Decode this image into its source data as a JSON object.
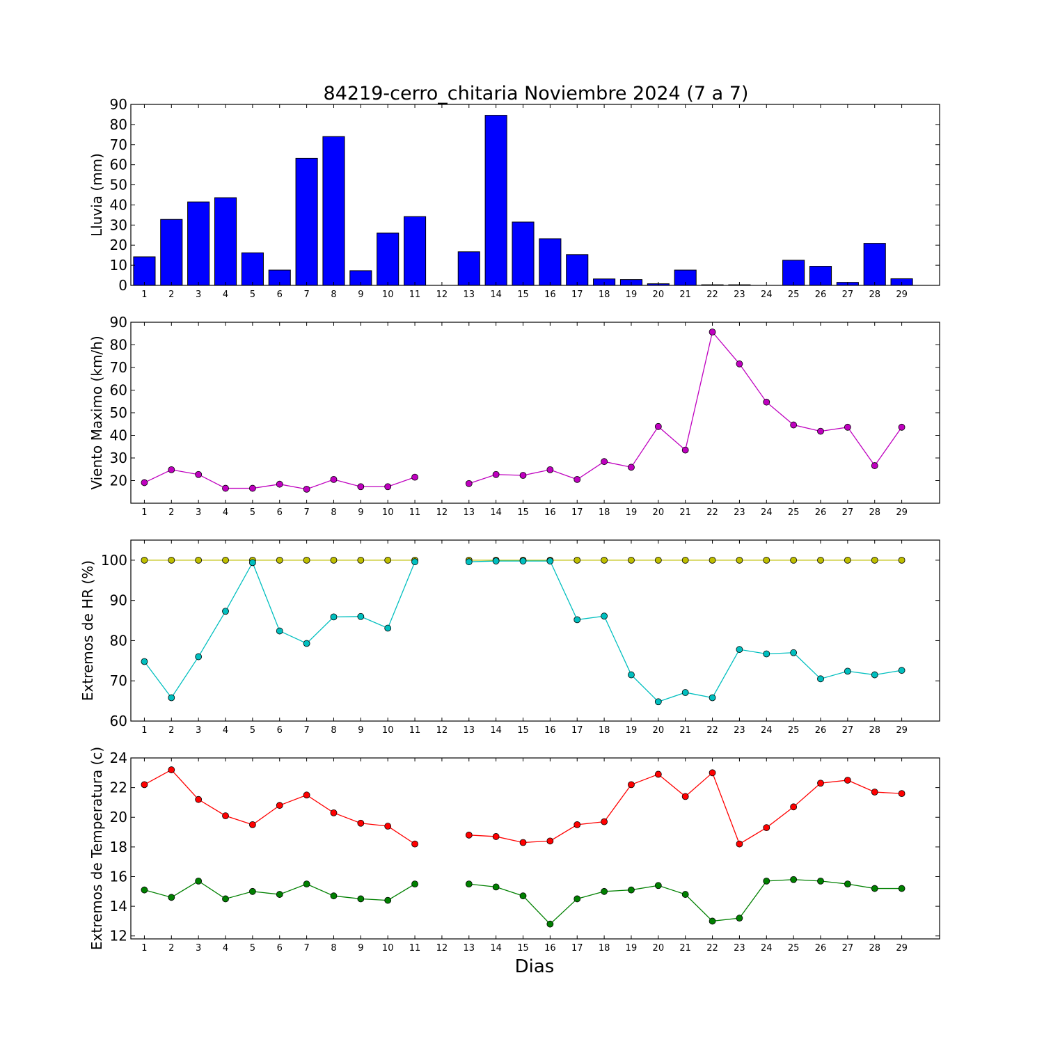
{
  "title": "84219-cerro_chitaria Noviembre 2024  (7 a 7)",
  "xlabel": "Dias",
  "chart_data": [
    {
      "type": "bar",
      "ylabel": "Lluvia (mm)",
      "ylim": [
        0,
        90
      ],
      "yticks": [
        0,
        10,
        20,
        30,
        40,
        50,
        60,
        70,
        80,
        90
      ],
      "categories": [
        1,
        2,
        3,
        4,
        5,
        6,
        7,
        8,
        9,
        10,
        11,
        12,
        13,
        14,
        15,
        16,
        17,
        18,
        19,
        20,
        21,
        22,
        23,
        24,
        25,
        26,
        27,
        28,
        29
      ],
      "series": [
        {
          "color": "#0000ff",
          "values": [
            14.2,
            32.8,
            41.5,
            43.6,
            16.2,
            7.6,
            63.2,
            74.0,
            7.3,
            26.0,
            34.2,
            null,
            16.7,
            84.6,
            31.5,
            23.2,
            15.3,
            3.2,
            2.9,
            0.8,
            7.6,
            0.3,
            0.3,
            null,
            12.5,
            9.5,
            1.5,
            20.9,
            3.3
          ]
        }
      ],
      "grid": false
    },
    {
      "type": "line",
      "ylabel": "Viento Maximo (km/h)",
      "ylim": [
        10,
        90
      ],
      "yticks": [
        20,
        30,
        40,
        50,
        60,
        70,
        80,
        90
      ],
      "categories": [
        1,
        2,
        3,
        4,
        5,
        6,
        7,
        8,
        9,
        10,
        11,
        12,
        13,
        14,
        15,
        16,
        17,
        18,
        19,
        20,
        21,
        22,
        23,
        24,
        25,
        26,
        27,
        28,
        29
      ],
      "series": [
        {
          "color": "#bf00bf",
          "values": [
            19.1,
            24.8,
            22.7,
            16.6,
            16.6,
            18.4,
            16.2,
            20.5,
            17.3,
            17.3,
            21.5,
            null,
            18.7,
            22.7,
            22.3,
            24.8,
            20.5,
            28.4,
            25.9,
            43.9,
            33.5,
            85.7,
            71.6,
            54.7,
            44.6,
            41.8,
            43.6,
            26.6,
            43.6
          ]
        }
      ],
      "grid": false
    },
    {
      "type": "line",
      "ylabel": "Extremos de HR (%)",
      "ylim": [
        60,
        105
      ],
      "yticks": [
        60,
        70,
        80,
        90,
        100
      ],
      "categories": [
        1,
        2,
        3,
        4,
        5,
        6,
        7,
        8,
        9,
        10,
        11,
        12,
        13,
        14,
        15,
        16,
        17,
        18,
        19,
        20,
        21,
        22,
        23,
        24,
        25,
        26,
        27,
        28,
        29
      ],
      "series": [
        {
          "color": "#bfbf00",
          "values": [
            100,
            100,
            100,
            100,
            100,
            100,
            100,
            100,
            100,
            100,
            100,
            null,
            100,
            100,
            100,
            100,
            100,
            100,
            100,
            100,
            100,
            100,
            100,
            100,
            100,
            100,
            100,
            100,
            100
          ]
        },
        {
          "color": "#00bfbf",
          "values": [
            74.8,
            65.8,
            76.0,
            87.3,
            99.4,
            82.4,
            79.3,
            85.9,
            86.0,
            83.1,
            99.6,
            null,
            99.6,
            99.8,
            99.8,
            99.8,
            85.2,
            86.1,
            71.5,
            64.8,
            67.1,
            65.8,
            77.8,
            76.7,
            77.0,
            70.5,
            72.4,
            71.5,
            72.6
          ]
        }
      ],
      "grid": false
    },
    {
      "type": "line",
      "ylabel": "Extremos de Temperatura (c)",
      "ylim": [
        11.8,
        24.0
      ],
      "yticks": [
        12,
        14,
        16,
        18,
        20,
        22,
        24
      ],
      "categories": [
        1,
        2,
        3,
        4,
        5,
        6,
        7,
        8,
        9,
        10,
        11,
        12,
        13,
        14,
        15,
        16,
        17,
        18,
        19,
        20,
        21,
        22,
        23,
        24,
        25,
        26,
        27,
        28,
        29
      ],
      "series": [
        {
          "color": "#ff0000",
          "values": [
            22.2,
            23.2,
            21.2,
            20.1,
            19.5,
            20.8,
            21.5,
            20.3,
            19.6,
            19.4,
            18.2,
            null,
            18.8,
            18.7,
            18.3,
            18.4,
            19.5,
            19.7,
            22.2,
            22.9,
            21.4,
            23.0,
            18.2,
            19.3,
            20.7,
            22.3,
            22.5,
            21.7,
            21.6
          ]
        },
        {
          "color": "#008000",
          "values": [
            15.1,
            14.6,
            15.7,
            14.5,
            15.0,
            14.8,
            15.5,
            14.7,
            14.5,
            14.4,
            15.5,
            null,
            15.5,
            15.3,
            14.7,
            12.8,
            14.5,
            15.0,
            15.1,
            15.4,
            14.8,
            13.0,
            13.2,
            15.7,
            15.8,
            15.7,
            15.5,
            15.2,
            15.2
          ]
        }
      ],
      "grid": false
    }
  ]
}
